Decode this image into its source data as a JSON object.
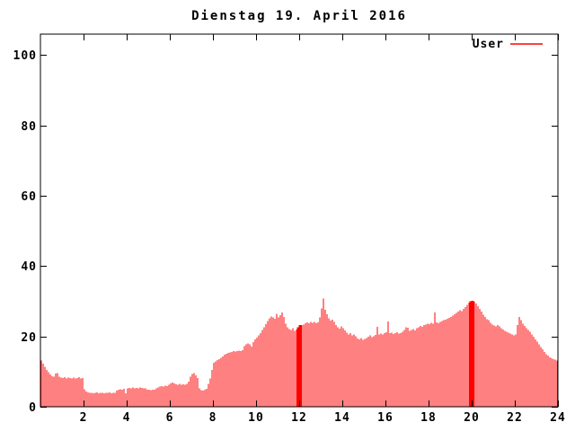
{
  "window": {
    "background": "#ffffff",
    "foreground": "#000000"
  },
  "chart_data": {
    "type": "bar",
    "title": "Dienstag 19. April 2016",
    "xlabel": "",
    "ylabel": "",
    "x_unit": "hour of day",
    "sample_interval_minutes": 5,
    "xlim": [
      0,
      24
    ],
    "ylim": [
      0,
      106
    ],
    "x_ticks": [
      2,
      4,
      6,
      8,
      10,
      12,
      14,
      16,
      18,
      20,
      22,
      24
    ],
    "y_ticks": [
      0,
      20,
      40,
      60,
      80,
      100
    ],
    "grid": false,
    "bar_color": "#ff0000",
    "axis_color": "#000000",
    "legend": {
      "label": "User",
      "position": "top-right",
      "color": "#ff0000"
    },
    "merged_indices": [
      143,
      144,
      239,
      240
    ],
    "values": [
      13.2,
      12.3,
      11.4,
      10.5,
      9.8,
      9.2,
      8.7,
      8.5,
      9.4,
      9.6,
      8.6,
      8.3,
      8.2,
      8.4,
      8.1,
      8.3,
      8.2,
      8.0,
      8.3,
      8.1,
      8.2,
      8.4,
      8.1,
      8.2,
      5.0,
      4.4,
      4.1,
      3.9,
      4.0,
      3.8,
      3.9,
      4.1,
      3.8,
      4.0,
      3.9,
      3.8,
      4.0,
      3.9,
      4.1,
      3.8,
      3.9,
      4.0,
      4.6,
      4.9,
      5.0,
      4.8,
      5.1,
      3.8,
      5.2,
      5.4,
      5.3,
      5.5,
      5.2,
      5.4,
      5.3,
      5.5,
      5.4,
      5.2,
      5.3,
      4.9,
      4.8,
      4.7,
      4.9,
      4.8,
      5.2,
      5.5,
      5.7,
      5.9,
      5.8,
      6.0,
      5.9,
      6.2,
      6.6,
      6.9,
      6.7,
      6.4,
      6.3,
      6.5,
      6.2,
      6.4,
      6.3,
      6.5,
      7.2,
      8.6,
      9.3,
      9.6,
      8.9,
      8.2,
      5.2,
      4.7,
      4.6,
      4.9,
      5.1,
      6.5,
      8.0,
      10.5,
      12.5,
      12.9,
      13.3,
      13.6,
      13.9,
      14.3,
      14.8,
      15.1,
      15.3,
      15.5,
      15.6,
      15.8,
      15.7,
      15.9,
      16.0,
      15.8,
      16.1,
      17.3,
      17.7,
      18.0,
      17.8,
      17.1,
      18.4,
      19.1,
      19.7,
      20.3,
      21.0,
      21.8,
      22.6,
      23.5,
      24.4,
      25.1,
      25.7,
      25.4,
      25.0,
      26.4,
      25.4,
      26.0,
      26.8,
      25.5,
      23.6,
      22.6,
      22.1,
      21.8,
      22.3,
      21.6,
      22.0,
      22.6,
      23.3,
      23.3,
      23.4,
      23.7,
      24.0,
      23.7,
      24.2,
      23.9,
      24.1,
      23.8,
      24.0,
      25.4,
      28.0,
      30.8,
      27.6,
      26.3,
      25.1,
      24.5,
      24.8,
      24.1,
      23.3,
      22.6,
      22.2,
      22.8,
      22.4,
      21.7,
      21.1,
      20.6,
      20.9,
      20.3,
      20.6,
      20.1,
      19.4,
      19.1,
      19.5,
      19.0,
      19.3,
      19.6,
      19.9,
      20.3,
      19.8,
      20.1,
      20.4,
      22.7,
      20.5,
      20.8,
      20.6,
      21.0,
      21.2,
      24.3,
      20.9,
      21.1,
      20.7,
      20.9,
      21.2,
      20.8,
      21.0,
      21.3,
      21.9,
      22.6,
      22.5,
      21.6,
      21.9,
      22.1,
      21.7,
      22.3,
      22.6,
      23.0,
      22.7,
      23.2,
      23.4,
      23.6,
      23.5,
      23.9,
      23.6,
      26.8,
      24.0,
      23.8,
      24.2,
      24.4,
      24.6,
      24.8,
      25.0,
      25.3,
      25.6,
      25.9,
      26.3,
      26.7,
      27.1,
      27.5,
      27.2,
      27.8,
      28.4,
      29.0,
      29.6,
      30.0,
      30.2,
      29.9,
      29.4,
      28.6,
      27.9,
      27.1,
      26.2,
      25.5,
      24.9,
      24.6,
      23.9,
      23.4,
      23.1,
      22.9,
      23.2,
      22.8,
      22.4,
      22.0,
      21.6,
      21.3,
      21.1,
      20.8,
      20.6,
      20.3,
      20.6,
      23.2,
      25.6,
      24.6,
      23.6,
      23.0,
      22.4,
      21.8,
      21.3,
      20.6,
      19.9,
      19.2,
      18.5,
      17.7,
      17.0,
      16.3,
      15.6,
      15.0,
      14.5,
      14.1,
      13.8,
      13.6,
      13.4,
      13.1
    ]
  }
}
